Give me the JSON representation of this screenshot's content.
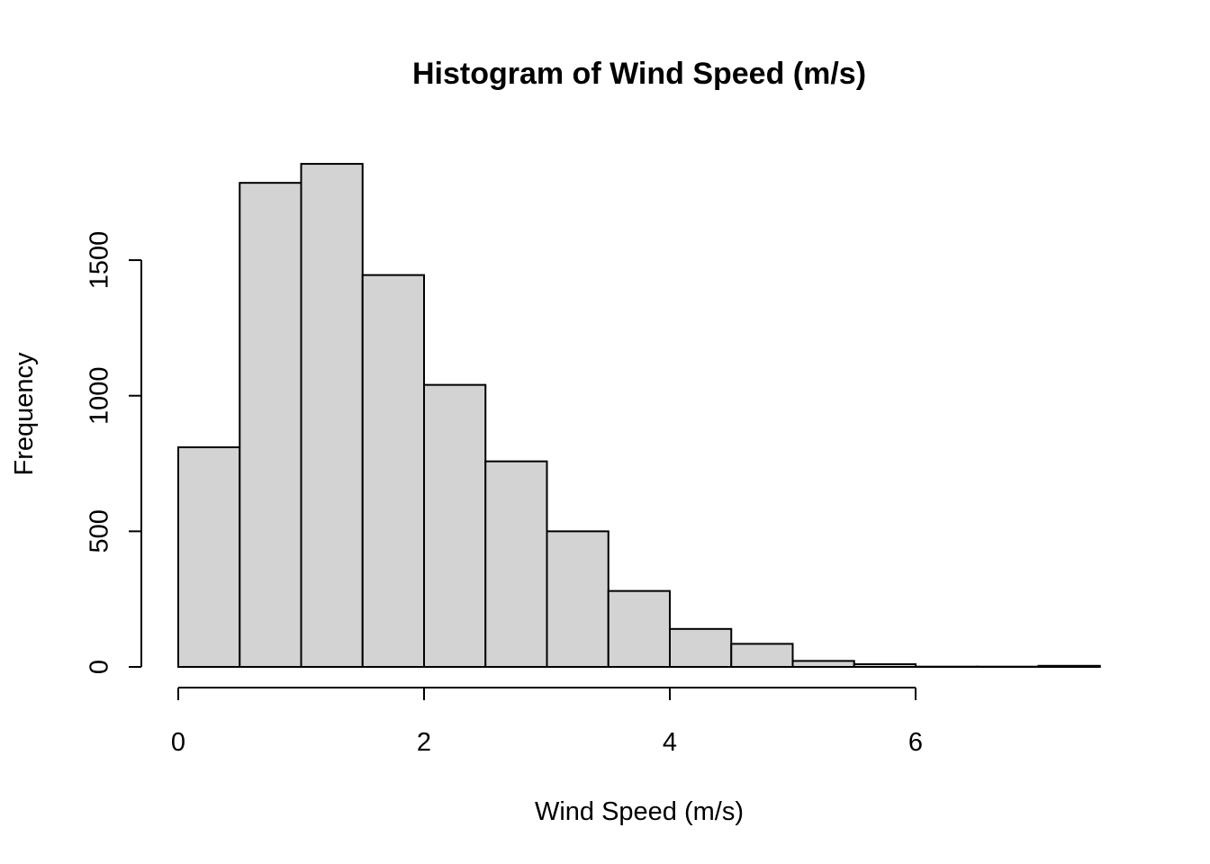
{
  "chart_data": {
    "type": "bar",
    "title": "Histogram of Wind Speed (m/s)",
    "xlabel": "Wind Speed (m/s)",
    "ylabel": "Frequency",
    "xlim": [
      0,
      7.5
    ],
    "ylim": [
      0,
      1900
    ],
    "x_ticks": [
      0,
      2,
      4,
      6
    ],
    "x_tick_labels": [
      "0",
      "2",
      "4",
      "6"
    ],
    "y_ticks": [
      0,
      500,
      1000,
      1500
    ],
    "y_tick_labels": [
      "0",
      "500",
      "1000",
      "1500"
    ],
    "bin_width": 0.5,
    "bins": [
      {
        "start": 0.0,
        "end": 0.5,
        "count": 810
      },
      {
        "start": 0.5,
        "end": 1.0,
        "count": 1785
      },
      {
        "start": 1.0,
        "end": 1.5,
        "count": 1855
      },
      {
        "start": 1.5,
        "end": 2.0,
        "count": 1445
      },
      {
        "start": 2.0,
        "end": 2.5,
        "count": 1040
      },
      {
        "start": 2.5,
        "end": 3.0,
        "count": 758
      },
      {
        "start": 3.0,
        "end": 3.5,
        "count": 500
      },
      {
        "start": 3.5,
        "end": 4.0,
        "count": 280
      },
      {
        "start": 4.0,
        "end": 4.5,
        "count": 140
      },
      {
        "start": 4.5,
        "end": 5.0,
        "count": 85
      },
      {
        "start": 5.0,
        "end": 5.5,
        "count": 22
      },
      {
        "start": 5.5,
        "end": 6.0,
        "count": 10
      },
      {
        "start": 6.0,
        "end": 6.5,
        "count": 1
      },
      {
        "start": 6.5,
        "end": 7.0,
        "count": 1
      },
      {
        "start": 7.0,
        "end": 7.5,
        "count": 4
      }
    ],
    "bar_fill": "#d3d3d3",
    "bar_stroke": "#000000",
    "grid": false,
    "legend": "none"
  }
}
